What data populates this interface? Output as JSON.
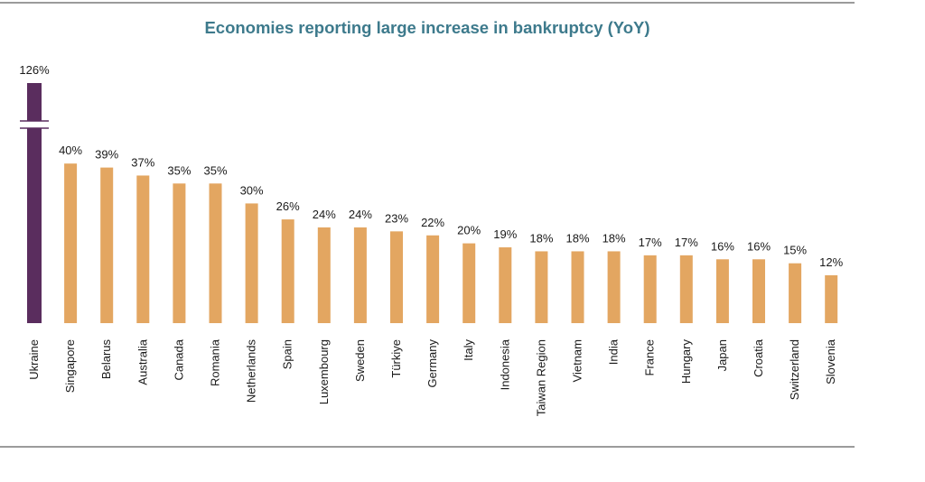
{
  "chart_data": {
    "type": "bar",
    "title": "Economies reporting large increase in bankruptcy (YoY)",
    "xlabel": "",
    "ylabel": "",
    "axis_break": true,
    "grid": false,
    "categories": [
      "Ukraine",
      "Singapore",
      "Belarus",
      "Australia",
      "Canada",
      "Romania",
      "Netherlands",
      "Spain",
      "Luxembourg",
      "Sweden",
      "Türkiye",
      "Germany",
      "Italy",
      "Indonesia",
      "Taiwan Region",
      "Vietnam",
      "India",
      "France",
      "Hungary",
      "Japan",
      "Croatia",
      "Switzerland",
      "Slovenia"
    ],
    "values": [
      126,
      40,
      39,
      37,
      35,
      35,
      30,
      26,
      24,
      24,
      23,
      22,
      20,
      19,
      18,
      18,
      18,
      17,
      17,
      16,
      16,
      15,
      12
    ],
    "value_labels": [
      "126%",
      "40%",
      "39%",
      "37%",
      "35%",
      "35%",
      "30%",
      "26%",
      "24%",
      "24%",
      "23%",
      "22%",
      "20%",
      "19%",
      "18%",
      "18%",
      "18%",
      "17%",
      "17%",
      "16%",
      "16%",
      "15%",
      "12%"
    ],
    "highlight_category": "Ukraine",
    "colors": {
      "highlight": "#5a2d5e",
      "bar": "#e3a661",
      "title": "#3d7a8c",
      "rule": "#9b9b9b"
    }
  }
}
